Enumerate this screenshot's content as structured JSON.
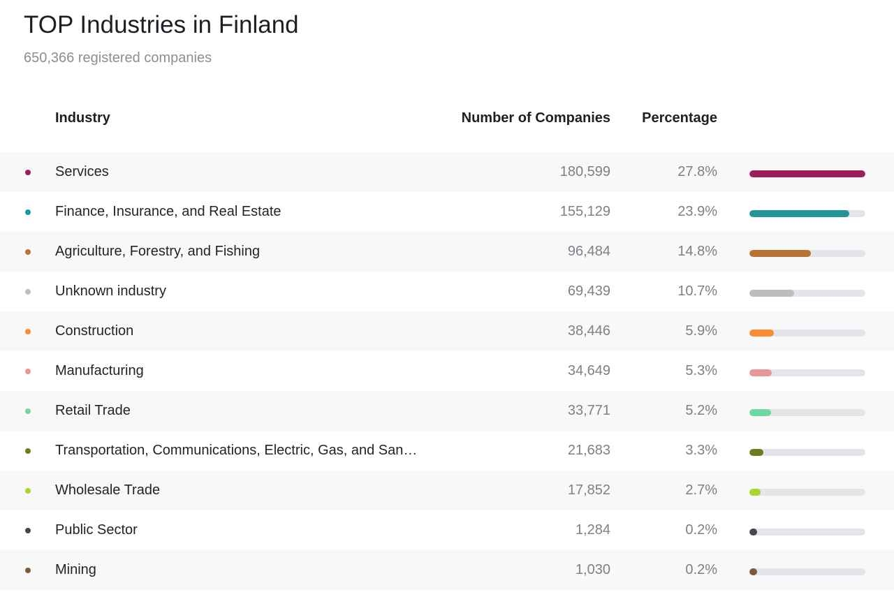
{
  "title": "TOP Industries in Finland",
  "subtitle": "650,366 registered companies",
  "columns": {
    "industry": "Industry",
    "count": "Number of Companies",
    "percentage": "Percentage"
  },
  "rows": [
    {
      "name": "Services",
      "count": "180,599",
      "percentage": "27.8%",
      "value": 27.8,
      "color": "#9b1f5c"
    },
    {
      "name": "Finance, Insurance, and Real Estate",
      "count": "155,129",
      "percentage": "23.9%",
      "value": 23.9,
      "color": "#229598"
    },
    {
      "name": "Agriculture, Forestry, and Fishing",
      "count": "96,484",
      "percentage": "14.8%",
      "value": 14.8,
      "color": "#b57433"
    },
    {
      "name": "Unknown industry",
      "count": "69,439",
      "percentage": "10.7%",
      "value": 10.7,
      "color": "#bdbdbd"
    },
    {
      "name": "Construction",
      "count": "38,446",
      "percentage": "5.9%",
      "value": 5.9,
      "color": "#f98c35"
    },
    {
      "name": "Manufacturing",
      "count": "34,649",
      "percentage": "5.3%",
      "value": 5.3,
      "color": "#e89696"
    },
    {
      "name": "Retail Trade",
      "count": "33,771",
      "percentage": "5.2%",
      "value": 5.2,
      "color": "#6fd8a2"
    },
    {
      "name": "Transportation, Communications, Electric, Gas, and Sanitary Services",
      "count": "21,683",
      "percentage": "3.3%",
      "value": 3.3,
      "color": "#6b7d1f"
    },
    {
      "name": "Wholesale Trade",
      "count": "17,852",
      "percentage": "2.7%",
      "value": 2.7,
      "color": "#a8d62e"
    },
    {
      "name": "Public Sector",
      "count": "1,284",
      "percentage": "0.2%",
      "value": 0.2,
      "color": "#45474d"
    },
    {
      "name": "Mining",
      "count": "1,030",
      "percentage": "0.2%",
      "value": 0.2,
      "color": "#7a5a3e"
    }
  ]
}
